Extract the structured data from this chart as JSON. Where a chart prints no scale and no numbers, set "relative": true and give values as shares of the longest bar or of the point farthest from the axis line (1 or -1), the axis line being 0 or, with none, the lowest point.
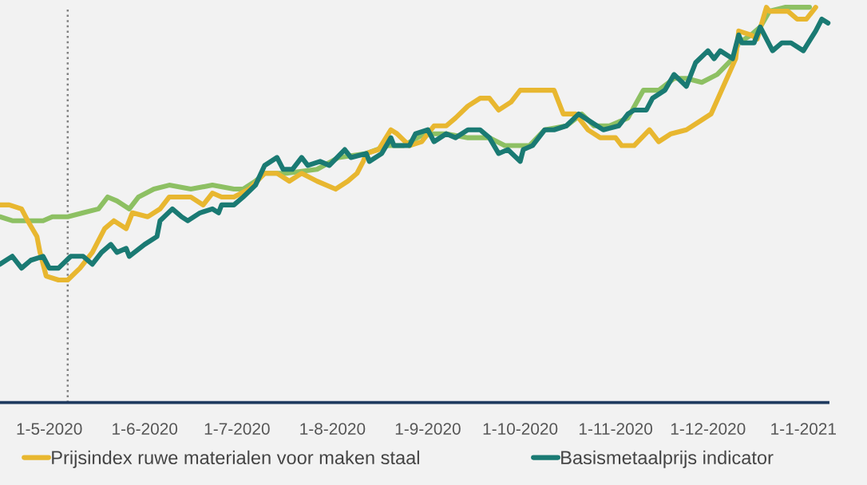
{
  "chart_data": {
    "type": "line",
    "relative": true,
    "legend": "bottom",
    "marker": "none",
    "line_style": "solid",
    "xlim": [
      "2020-04-15",
      "2021-01-09"
    ],
    "xticks": [
      {
        "value": "2020-05-01",
        "label": "1-5-2020"
      },
      {
        "value": "2020-06-01",
        "label": "1-6-2020"
      },
      {
        "value": "2020-07-01",
        "label": "1-7-2020"
      },
      {
        "value": "2020-08-01",
        "label": "1-8-2020"
      },
      {
        "value": "2020-09-01",
        "label": "1-9-2020"
      },
      {
        "value": "2020-10-01",
        "label": "1-10-2020"
      },
      {
        "value": "2020-11-01",
        "label": "1-11-2020"
      },
      {
        "value": "2020-12-01",
        "label": "1-12-2020"
      },
      {
        "value": "2021-01-01",
        "label": "1-1-2021"
      }
    ],
    "ref_lines": [
      {
        "axis": "x",
        "value": "2020-05-07",
        "label": null,
        "color": "#808080",
        "line_style": "dotted"
      }
    ],
    "series": [
      {
        "color": "#8dc063",
        "x": [
          "2020-04-15",
          "2020-04-19",
          "2020-04-24",
          "2020-04-29",
          "2020-05-02",
          "2020-05-07",
          "2020-05-12",
          "2020-05-17",
          "2020-05-20",
          "2020-05-23",
          "2020-05-27",
          "2020-05-30",
          "2020-06-04",
          "2020-06-09",
          "2020-06-16",
          "2020-06-23",
          "2020-06-30",
          "2020-07-03",
          "2020-07-07",
          "2020-07-10",
          "2020-07-17",
          "2020-07-27",
          "2020-08-03",
          "2020-08-12",
          "2020-08-19",
          "2020-08-24",
          "2020-08-31",
          "2020-09-07",
          "2020-09-14",
          "2020-09-21",
          "2020-09-26",
          "2020-10-04",
          "2020-10-09",
          "2020-10-16",
          "2020-10-21",
          "2020-10-25",
          "2020-10-30",
          "2020-11-05",
          "2020-11-10",
          "2020-11-15",
          "2020-11-20",
          "2020-11-24",
          "2020-11-29",
          "2020-12-04",
          "2020-12-09",
          "2020-12-11",
          "2020-12-15",
          "2020-12-18",
          "2020-12-21",
          "2020-12-26",
          "2021-01-01",
          "2021-01-03"
        ],
        "values": [
          0.47,
          0.46,
          0.46,
          0.46,
          0.47,
          0.47,
          0.48,
          0.49,
          0.52,
          0.51,
          0.49,
          0.52,
          0.54,
          0.55,
          0.54,
          0.55,
          0.54,
          0.54,
          0.56,
          0.58,
          0.58,
          0.59,
          0.62,
          0.63,
          0.65,
          0.65,
          0.68,
          0.68,
          0.67,
          0.67,
          0.65,
          0.65,
          0.69,
          0.7,
          0.73,
          0.7,
          0.7,
          0.72,
          0.79,
          0.79,
          0.82,
          0.82,
          0.81,
          0.83,
          0.87,
          0.91,
          0.93,
          0.95,
          0.99,
          1,
          1,
          1
        ]
      },
      {
        "name": "Prijsindex ruwe materialen voor maken staal",
        "color": "#e8b730",
        "x": [
          "2020-04-15",
          "2020-04-18",
          "2020-04-22",
          "2020-04-24",
          "2020-04-27",
          "2020-04-28",
          "2020-04-30",
          "2020-05-04",
          "2020-05-07",
          "2020-05-11",
          "2020-05-15",
          "2020-05-19",
          "2020-05-22",
          "2020-05-26",
          "2020-05-28",
          "2020-06-02",
          "2020-06-06",
          "2020-06-09",
          "2020-06-12",
          "2020-06-16",
          "2020-06-20",
          "2020-06-23",
          "2020-06-26",
          "2020-06-30",
          "2020-07-05",
          "2020-07-10",
          "2020-07-14",
          "2020-07-18",
          "2020-07-22",
          "2020-07-27",
          "2020-08-02",
          "2020-08-06",
          "2020-08-09",
          "2020-08-11",
          "2020-08-12",
          "2020-08-16",
          "2020-08-20",
          "2020-08-22",
          "2020-08-26",
          "2020-08-30",
          "2020-09-03",
          "2020-09-07",
          "2020-09-10",
          "2020-09-14",
          "2020-09-18",
          "2020-09-21",
          "2020-09-24",
          "2020-09-28",
          "2020-10-01",
          "2020-10-08",
          "2020-10-12",
          "2020-10-15",
          "2020-10-19",
          "2020-10-23",
          "2020-10-27",
          "2020-11-01",
          "2020-11-03",
          "2020-11-07",
          "2020-11-12",
          "2020-11-15",
          "2020-11-19",
          "2020-11-24",
          "2020-11-28",
          "2020-12-02",
          "2020-12-06",
          "2020-12-10",
          "2020-12-11",
          "2020-12-15",
          "2020-12-17",
          "2020-12-20",
          "2020-12-21",
          "2020-12-23",
          "2020-12-27",
          "2020-12-30",
          "2021-01-02",
          "2021-01-05"
        ],
        "values": [
          0.5,
          0.5,
          0.49,
          0.46,
          0.42,
          0.38,
          0.32,
          0.31,
          0.31,
          0.34,
          0.38,
          0.44,
          0.46,
          0.44,
          0.48,
          0.47,
          0.49,
          0.52,
          0.52,
          0.52,
          0.5,
          0.53,
          0.52,
          0.52,
          0.54,
          0.58,
          0.58,
          0.56,
          0.58,
          0.56,
          0.54,
          0.56,
          0.58,
          0.61,
          0.63,
          0.64,
          0.69,
          0.68,
          0.65,
          0.66,
          0.7,
          0.7,
          0.72,
          0.75,
          0.77,
          0.77,
          0.74,
          0.76,
          0.79,
          0.79,
          0.79,
          0.73,
          0.73,
          0.69,
          0.67,
          0.67,
          0.65,
          0.65,
          0.69,
          0.66,
          0.68,
          0.69,
          0.71,
          0.73,
          0.8,
          0.87,
          0.94,
          0.93,
          0.92,
          1,
          0.99,
          0.99,
          0.99,
          0.97,
          0.97,
          1
        ]
      },
      {
        "name": "Basismetaalprijs indicator",
        "color": "#1a7a73",
        "x": [
          "2020-04-15",
          "2020-04-19",
          "2020-04-22",
          "2020-04-25",
          "2020-04-29",
          "2020-05-01",
          "2020-05-04",
          "2020-05-08",
          "2020-05-12",
          "2020-05-15",
          "2020-05-18",
          "2020-05-21",
          "2020-05-23",
          "2020-05-26",
          "2020-05-27",
          "2020-06-01",
          "2020-06-05",
          "2020-06-06",
          "2020-06-10",
          "2020-06-13",
          "2020-06-15",
          "2020-06-19",
          "2020-06-23",
          "2020-06-25",
          "2020-06-26",
          "2020-06-30",
          "2020-07-03",
          "2020-07-07",
          "2020-07-10",
          "2020-07-14",
          "2020-07-16",
          "2020-07-19",
          "2020-07-22",
          "2020-07-24",
          "2020-07-28",
          "2020-07-31",
          "2020-08-05",
          "2020-08-07",
          "2020-08-12",
          "2020-08-13",
          "2020-08-17",
          "2020-08-20",
          "2020-08-21",
          "2020-08-26",
          "2020-08-28",
          "2020-09-01",
          "2020-09-03",
          "2020-09-07",
          "2020-09-10",
          "2020-09-14",
          "2020-09-18",
          "2020-09-21",
          "2020-09-24",
          "2020-09-27",
          "2020-10-01",
          "2020-10-02",
          "2020-10-05",
          "2020-10-09",
          "2020-10-12",
          "2020-10-16",
          "2020-10-20",
          "2020-10-24",
          "2020-10-28",
          "2020-11-02",
          "2020-11-05",
          "2020-11-07",
          "2020-11-11",
          "2020-11-13",
          "2020-11-17",
          "2020-11-20",
          "2020-11-24",
          "2020-11-27",
          "2020-12-01",
          "2020-12-03",
          "2020-12-05",
          "2020-12-09",
          "2020-12-11",
          "2020-12-12",
          "2020-12-16",
          "2020-12-18",
          "2020-12-22",
          "2020-12-25",
          "2020-12-28",
          "2021-01-01",
          "2021-01-05",
          "2021-01-07",
          "2021-01-09"
        ],
        "values": [
          0.35,
          0.37,
          0.34,
          0.36,
          0.37,
          0.34,
          0.34,
          0.37,
          0.37,
          0.35,
          0.38,
          0.4,
          0.38,
          0.39,
          0.37,
          0.4,
          0.42,
          0.46,
          0.49,
          0.47,
          0.46,
          0.48,
          0.49,
          0.48,
          0.5,
          0.5,
          0.52,
          0.55,
          0.6,
          0.62,
          0.59,
          0.59,
          0.62,
          0.6,
          0.61,
          0.6,
          0.64,
          0.62,
          0.63,
          0.61,
          0.63,
          0.67,
          0.65,
          0.65,
          0.68,
          0.69,
          0.66,
          0.68,
          0.67,
          0.69,
          0.69,
          0.67,
          0.63,
          0.64,
          0.61,
          0.64,
          0.65,
          0.69,
          0.69,
          0.7,
          0.73,
          0.71,
          0.69,
          0.7,
          0.73,
          0.74,
          0.74,
          0.77,
          0.79,
          0.83,
          0.8,
          0.86,
          0.89,
          0.87,
          0.89,
          0.87,
          0.93,
          0.91,
          0.91,
          0.95,
          0.89,
          0.91,
          0.91,
          0.89,
          0.94,
          0.97,
          0.96
        ]
      }
    ]
  }
}
